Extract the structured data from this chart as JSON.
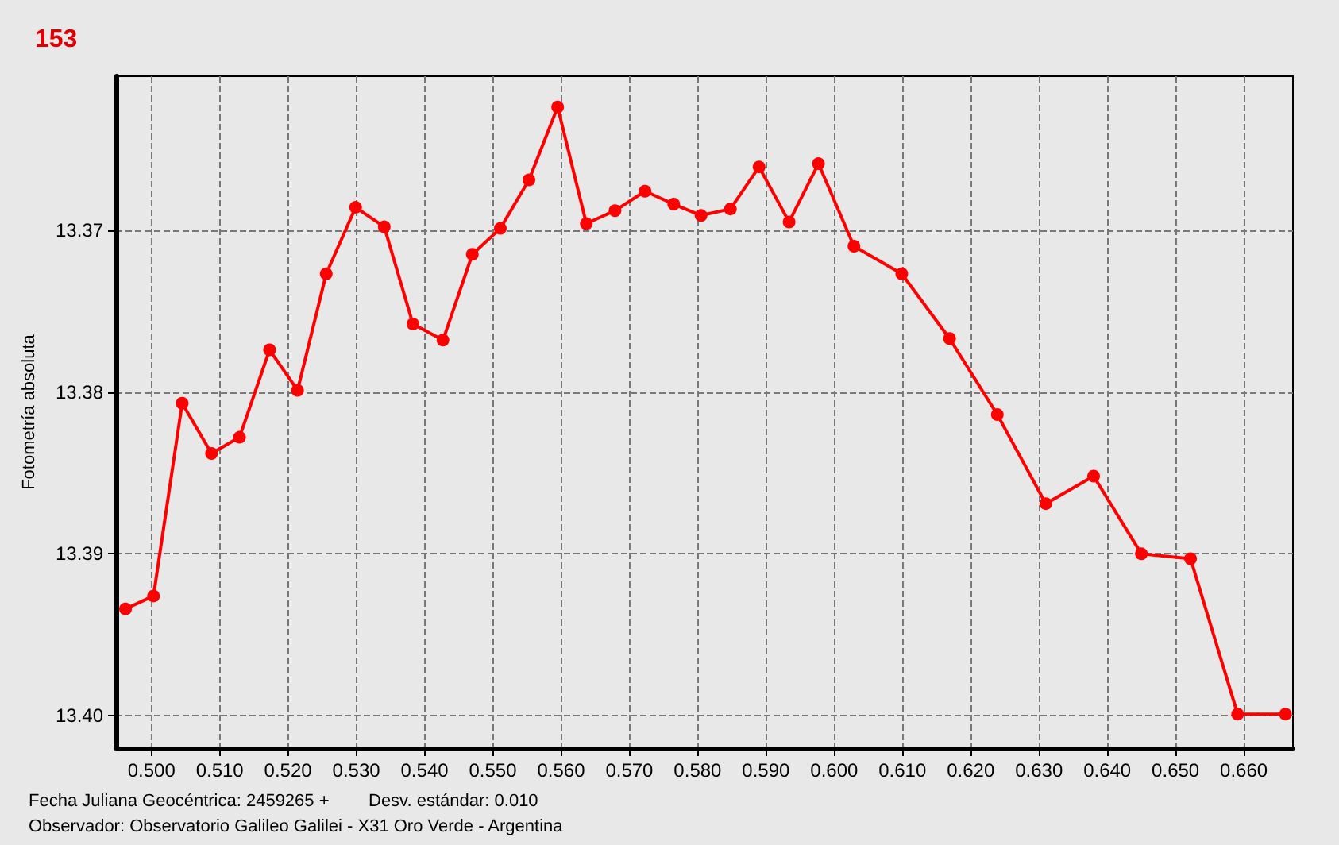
{
  "chart_data": {
    "type": "line",
    "title": "153",
    "ylabel": "Fotometría absoluta",
    "annotations": [
      "Fecha Juliana Geocéntrica: 2459265 +",
      "Desv. estándar: 0.010",
      "Observador: Observatorio Galileo Galilei - X31 Oro Verde - Argentina"
    ],
    "x": [
      0.4962,
      0.5003,
      0.5045,
      0.5088,
      0.5129,
      0.5173,
      0.5214,
      0.5256,
      0.5299,
      0.5341,
      0.5383,
      0.5427,
      0.547,
      0.5511,
      0.5553,
      0.5595,
      0.5637,
      0.5679,
      0.5723,
      0.5765,
      0.5805,
      0.5848,
      0.589,
      0.5934,
      0.5977,
      0.6029,
      0.6099,
      0.6169,
      0.6239,
      0.631,
      0.638,
      0.645,
      0.6522,
      0.6591,
      0.6661
    ],
    "series": [
      {
        "color": "#ff0000",
        "values": [
          13.3934,
          13.3926,
          13.3807,
          13.3838,
          13.3828,
          13.3774,
          13.3799,
          13.3727,
          13.3686,
          13.3698,
          13.3758,
          13.3768,
          13.3715,
          13.3699,
          13.3669,
          13.3624,
          13.3696,
          13.3688,
          13.3676,
          13.3684,
          13.3691,
          13.3687,
          13.3661,
          13.3695,
          13.3659,
          13.371,
          13.3727,
          13.3767,
          13.3814,
          13.3869,
          13.3852,
          13.39,
          13.3903,
          13.3999,
          13.3999
        ]
      }
    ],
    "xlim": [
      0.4948,
      0.6672
    ],
    "xticks": [
      {
        "value": 0.5,
        "label": "0.500"
      },
      {
        "value": 0.51,
        "label": "0.510"
      },
      {
        "value": 0.52,
        "label": "0.520"
      },
      {
        "value": 0.53,
        "label": "0.530"
      },
      {
        "value": 0.54,
        "label": "0.540"
      },
      {
        "value": 0.55,
        "label": "0.550"
      },
      {
        "value": 0.56,
        "label": "0.560"
      },
      {
        "value": 0.57,
        "label": "0.570"
      },
      {
        "value": 0.58,
        "label": "0.580"
      },
      {
        "value": 0.59,
        "label": "0.590"
      },
      {
        "value": 0.6,
        "label": "0.600"
      },
      {
        "value": 0.61,
        "label": "0.610"
      },
      {
        "value": 0.62,
        "label": "0.620"
      },
      {
        "value": 0.63,
        "label": "0.630"
      },
      {
        "value": 0.64,
        "label": "0.640"
      },
      {
        "value": 0.65,
        "label": "0.650"
      },
      {
        "value": 0.66,
        "label": "0.660"
      }
    ],
    "ylim": [
      13.402,
      13.3605
    ],
    "yticks": [
      13.37,
      13.38,
      13.39,
      {
        "value": 13.4,
        "label": "13.40"
      }
    ],
    "grid": true,
    "marker": "circle",
    "line_style": "solid"
  }
}
